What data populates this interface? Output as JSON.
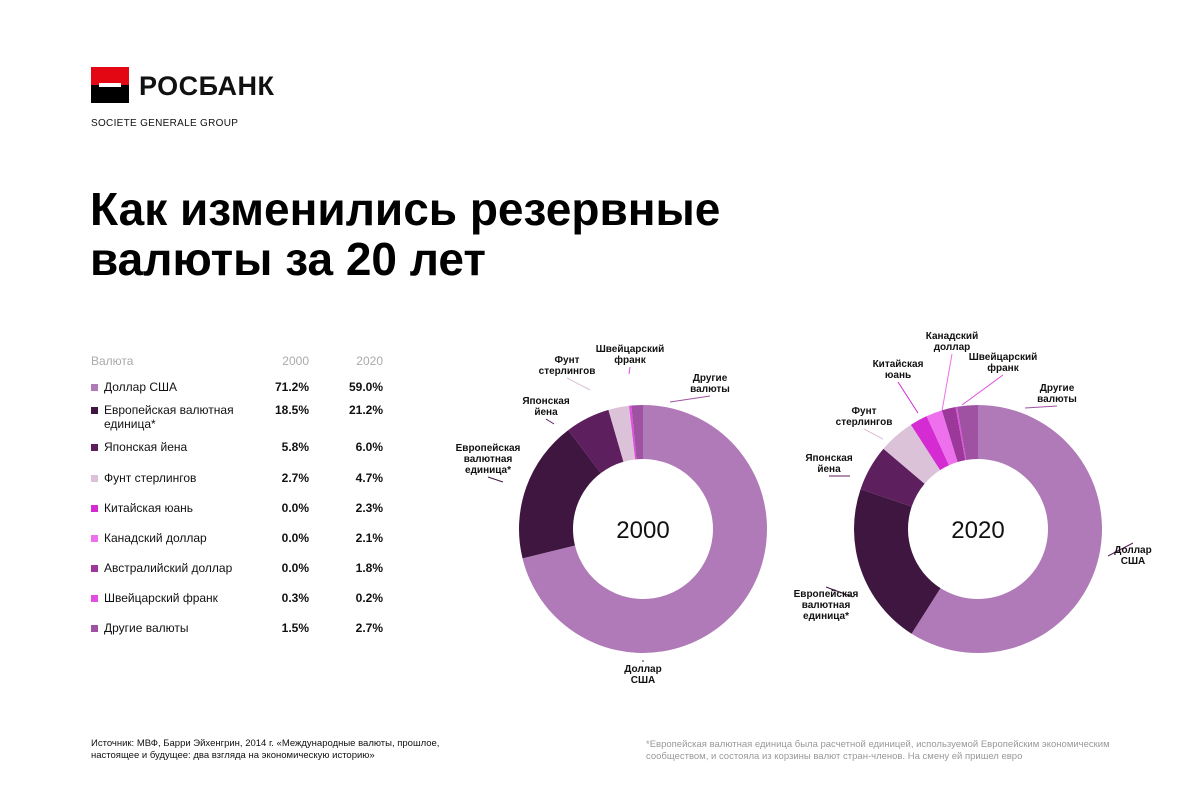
{
  "brand": {
    "name": "РОСБАНК",
    "group": "SOCIETE GENERALE GROUP"
  },
  "title": "Как изменились резервные валюты за 20 лет",
  "table": {
    "header": {
      "name": "Валюта",
      "y2000": "2000",
      "y2020": "2020"
    },
    "rows": [
      {
        "name": "Доллар США",
        "v2000": "71.2%",
        "v2020": "59.0%",
        "color": "#b07ab8"
      },
      {
        "name": "Европейская валютная единица*",
        "v2000": "18.5%",
        "v2020": "21.2%",
        "color": "#3e163f"
      },
      {
        "name": "Японская йена",
        "v2000": "5.8%",
        "v2020": "6.0%",
        "color": "#5e1f5e"
      },
      {
        "name": "Фунт стерлингов",
        "v2000": "2.7%",
        "v2020": "4.7%",
        "color": "#dcc2d9"
      },
      {
        "name": "Китайская юань",
        "v2000": "0.0%",
        "v2020": "2.3%",
        "color": "#d42bd2"
      },
      {
        "name": "Канадский доллар",
        "v2000": "0.0%",
        "v2020": "2.1%",
        "color": "#ee70ec"
      },
      {
        "name": "Австралийский доллар",
        "v2000": "0.0%",
        "v2020": "1.8%",
        "color": "#9c3899"
      },
      {
        "name": "Швейцарский франк",
        "v2000": "0.3%",
        "v2020": "0.2%",
        "color": "#e24fe0"
      },
      {
        "name": "Другие валюты",
        "v2000": "1.5%",
        "v2020": "2.7%",
        "color": "#a052a2"
      }
    ]
  },
  "chart_data": [
    {
      "type": "pie",
      "center_label": "2000",
      "slices": [
        {
          "name": "Доллар США",
          "value": 71.2,
          "color": "#b07ab8",
          "label": [
            "Доллар",
            "США"
          ]
        },
        {
          "name": "Европейская валютная единица*",
          "value": 18.5,
          "color": "#3e163f",
          "label": [
            "Европейская",
            "валютная",
            "единица*"
          ]
        },
        {
          "name": "Японская йена",
          "value": 5.8,
          "color": "#5e1f5e",
          "label": [
            "Японская",
            "йена"
          ]
        },
        {
          "name": "Фунт стерлингов",
          "value": 2.7,
          "color": "#dcc2d9",
          "label": [
            "Фунт",
            "стерлингов"
          ]
        },
        {
          "name": "Китайская юань",
          "value": 0.0,
          "color": "#d42bd2",
          "label": []
        },
        {
          "name": "Канадский доллар",
          "value": 0.0,
          "color": "#ee70ec",
          "label": []
        },
        {
          "name": "Австралийский доллар",
          "value": 0.0,
          "color": "#9c3899",
          "label": []
        },
        {
          "name": "Швейцарский франк",
          "value": 0.3,
          "color": "#e24fe0",
          "label": [
            "Швейцарский",
            "франк"
          ]
        },
        {
          "name": "Другие валюты",
          "value": 1.5,
          "color": "#a052a2",
          "label": [
            "Другие",
            "валюты"
          ]
        }
      ]
    },
    {
      "type": "pie",
      "center_label": "2020",
      "slices": [
        {
          "name": "Доллар США",
          "value": 59.0,
          "color": "#b07ab8",
          "label": [
            "Доллар",
            "США"
          ]
        },
        {
          "name": "Европейская валютная единица*",
          "value": 21.2,
          "color": "#3e163f",
          "label": [
            "Европейская",
            "валютная",
            "единица*"
          ]
        },
        {
          "name": "Японская йена",
          "value": 6.0,
          "color": "#5e1f5e",
          "label": [
            "Японская",
            "йена"
          ]
        },
        {
          "name": "Фунт стерлингов",
          "value": 4.7,
          "color": "#dcc2d9",
          "label": [
            "Фунт",
            "стерлингов"
          ]
        },
        {
          "name": "Китайская юань",
          "value": 2.3,
          "color": "#d42bd2",
          "label": [
            "Китайская",
            "юань"
          ]
        },
        {
          "name": "Канадский доллар",
          "value": 2.1,
          "color": "#ee70ec",
          "label": [
            "Канадский",
            "доллар"
          ]
        },
        {
          "name": "Австралийский доллар",
          "value": 1.8,
          "color": "#9c3899",
          "label": []
        },
        {
          "name": "Швейцарский франк",
          "value": 0.2,
          "color": "#e24fe0",
          "label": [
            "Швейцарский",
            "франк"
          ]
        },
        {
          "name": "Другие валюты",
          "value": 2.7,
          "color": "#a052a2",
          "label": [
            "Другие",
            "валюты"
          ]
        }
      ]
    }
  ],
  "source_note": "Источник: МВФ, Барри Эйхенгрин, 2014 г. «Международные валюты, прошлое, настоящее и будущее: два взгляда на экономическую историю»",
  "footnote": "*Европейская валютная единица была расчетной единицей, используемой Европейским экономическим сообществом, и состояла из корзины валют стран-членов. На смену ей пришел евро"
}
